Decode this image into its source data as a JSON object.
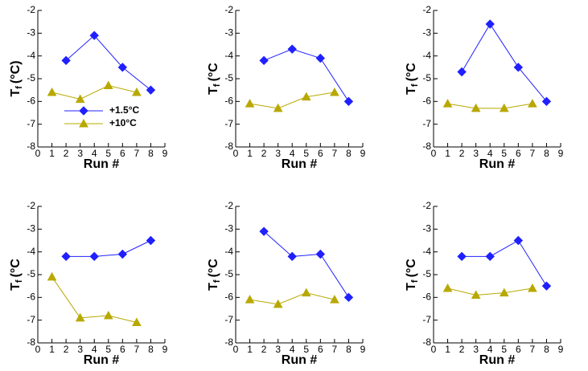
{
  "chart_data": [
    {
      "type": "line",
      "xlabel": "Run #",
      "ylabel": [
        "T",
        "f",
        "(°C)"
      ],
      "xlim": [
        0,
        9
      ],
      "ylim": [
        -8,
        -2
      ],
      "xticks": [
        0,
        1,
        2,
        3,
        4,
        5,
        6,
        7,
        8,
        9
      ],
      "yticks": [
        -8,
        -7,
        -6,
        -5,
        -4,
        -3,
        -2
      ],
      "legend": "lower right",
      "series": [
        {
          "name": "+1.5°C",
          "color": "#2020ff",
          "marker": "diamond",
          "x": [
            2,
            4,
            6,
            8
          ],
          "values": [
            -4.2,
            -3.1,
            -4.5,
            -5.5
          ]
        },
        {
          "name": "+10°C",
          "color": "#b8a800",
          "marker": "triangle",
          "x": [
            1,
            3,
            5,
            7
          ],
          "values": [
            -5.6,
            -5.9,
            -5.3,
            -5.6
          ]
        }
      ]
    },
    {
      "type": "line",
      "xlabel": "Run #",
      "ylabel": [
        "T",
        "f",
        "(°C"
      ],
      "xlim": [
        0,
        9
      ],
      "ylim": [
        -8,
        -2
      ],
      "xticks": [
        0,
        1,
        2,
        3,
        4,
        5,
        6,
        7,
        8,
        9
      ],
      "yticks": [
        -8,
        -7,
        -6,
        -5,
        -4,
        -3,
        -2
      ],
      "series": [
        {
          "color": "#2020ff",
          "marker": "diamond",
          "x": [
            2,
            4,
            6,
            8
          ],
          "values": [
            -4.2,
            -3.7,
            -4.1,
            -6.0
          ]
        },
        {
          "color": "#b8a800",
          "marker": "triangle",
          "x": [
            1,
            3,
            5,
            7
          ],
          "values": [
            -6.1,
            -6.3,
            -5.8,
            -5.6
          ]
        }
      ]
    },
    {
      "type": "line",
      "xlabel": "Run #",
      "ylabel": [
        "T",
        "f",
        "(°C"
      ],
      "xlim": [
        0,
        9
      ],
      "ylim": [
        -8,
        -2
      ],
      "xticks": [
        0,
        1,
        2,
        3,
        4,
        5,
        6,
        7,
        8,
        9
      ],
      "yticks": [
        -8,
        -7,
        -6,
        -5,
        -4,
        -3,
        -2
      ],
      "series": [
        {
          "color": "#2020ff",
          "marker": "diamond",
          "x": [
            2,
            4,
            6,
            8
          ],
          "values": [
            -4.7,
            -2.6,
            -4.5,
            -6.0
          ]
        },
        {
          "color": "#b8a800",
          "marker": "triangle",
          "x": [
            1,
            3,
            5,
            7
          ],
          "values": [
            -6.1,
            -6.3,
            -6.3,
            -6.1
          ]
        }
      ]
    },
    {
      "type": "line",
      "xlabel": "Run #",
      "ylabel": [
        "T",
        "f",
        "(°C"
      ],
      "xlim": [
        0,
        9
      ],
      "ylim": [
        -8,
        -2
      ],
      "xticks": [
        0,
        1,
        2,
        3,
        4,
        5,
        6,
        7,
        8,
        9
      ],
      "yticks": [
        -8,
        -7,
        -6,
        -5,
        -4,
        -3,
        -2
      ],
      "series": [
        {
          "color": "#2020ff",
          "marker": "diamond",
          "x": [
            2,
            4,
            6,
            8
          ],
          "values": [
            -4.2,
            -4.2,
            -4.1,
            -3.5
          ]
        },
        {
          "color": "#b8a800",
          "marker": "triangle",
          "x": [
            1,
            3,
            5,
            7
          ],
          "values": [
            -5.1,
            -6.9,
            -6.8,
            -7.1
          ]
        }
      ]
    },
    {
      "type": "line",
      "xlabel": "Run #",
      "ylabel": [
        "T",
        "f",
        "(°C"
      ],
      "xlim": [
        0,
        9
      ],
      "ylim": [
        -8,
        -2
      ],
      "xticks": [
        0,
        1,
        2,
        3,
        4,
        5,
        6,
        7,
        8,
        9
      ],
      "yticks": [
        -8,
        -7,
        -6,
        -5,
        -4,
        -3,
        -2
      ],
      "series": [
        {
          "color": "#2020ff",
          "marker": "diamond",
          "x": [
            2,
            4,
            6,
            8
          ],
          "values": [
            -3.1,
            -4.2,
            -4.1,
            -6.0
          ]
        },
        {
          "color": "#b8a800",
          "marker": "triangle",
          "x": [
            1,
            3,
            5,
            7
          ],
          "values": [
            -6.1,
            -6.3,
            -5.8,
            -6.1
          ]
        }
      ]
    },
    {
      "type": "line",
      "xlabel": "Run #",
      "ylabel": [
        "T",
        "f",
        "(°C"
      ],
      "xlim": [
        0,
        9
      ],
      "ylim": [
        -8,
        -2
      ],
      "xticks": [
        0,
        1,
        2,
        3,
        4,
        5,
        6,
        7,
        8,
        9
      ],
      "yticks": [
        -8,
        -7,
        -6,
        -5,
        -4,
        -3,
        -2
      ],
      "series": [
        {
          "color": "#2020ff",
          "marker": "diamond",
          "x": [
            2,
            4,
            6,
            8
          ],
          "values": [
            -4.2,
            -4.2,
            -3.5,
            -5.5
          ]
        },
        {
          "color": "#b8a800",
          "marker": "triangle",
          "x": [
            1,
            3,
            5,
            7
          ],
          "values": [
            -5.6,
            -5.9,
            -5.8,
            -5.6
          ]
        }
      ]
    }
  ]
}
